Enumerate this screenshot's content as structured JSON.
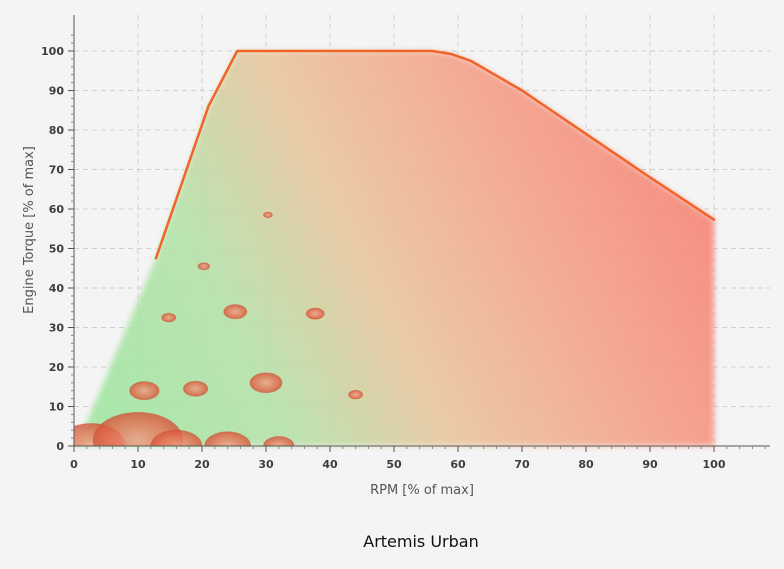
{
  "chart_data": {
    "type": "scatter",
    "title": "Artemis Urban",
    "xlabel": "RPM [% of max]",
    "ylabel": "Engine Torque [% of max]",
    "xlim": [
      0,
      108
    ],
    "ylim": [
      0,
      106
    ],
    "xticks": [
      0,
      10,
      20,
      30,
      40,
      50,
      60,
      70,
      80,
      90,
      100
    ],
    "yticks": [
      0,
      10,
      20,
      30,
      40,
      50,
      60,
      70,
      80,
      90,
      100
    ],
    "grid": true,
    "colors": {
      "low_load": "#a8e6a8",
      "high_load": "#f7877a",
      "limit_line": "#f06428",
      "bubble": "#e0573a"
    },
    "max_torque_curve": {
      "x": [
        12.8,
        21,
        25.5,
        56,
        59,
        62,
        70,
        80,
        90,
        100
      ],
      "y": [
        47.5,
        86,
        100,
        100,
        99.2,
        97.5,
        90,
        79,
        68,
        57.3
      ]
    },
    "operating_points": [
      {
        "x": 2.7,
        "y": 0.5,
        "size": 5.2
      },
      {
        "x": 10,
        "y": 1.5,
        "size": 7
      },
      {
        "x": 16,
        "y": 0,
        "size": 4
      },
      {
        "x": 24,
        "y": 0,
        "size": 3.6
      },
      {
        "x": 32,
        "y": 0,
        "size": 2.4
      },
      {
        "x": 11,
        "y": 14,
        "size": 2.3
      },
      {
        "x": 19,
        "y": 14.5,
        "size": 1.9
      },
      {
        "x": 30,
        "y": 16,
        "size": 2.5
      },
      {
        "x": 14.8,
        "y": 32.5,
        "size": 1.1
      },
      {
        "x": 25.2,
        "y": 34,
        "size": 1.8
      },
      {
        "x": 37.7,
        "y": 33.5,
        "size": 1.4
      },
      {
        "x": 44,
        "y": 13,
        "size": 1.1
      },
      {
        "x": 20.3,
        "y": 45.5,
        "size": 0.9
      },
      {
        "x": 30.3,
        "y": 58.5,
        "size": 0.7
      }
    ]
  }
}
